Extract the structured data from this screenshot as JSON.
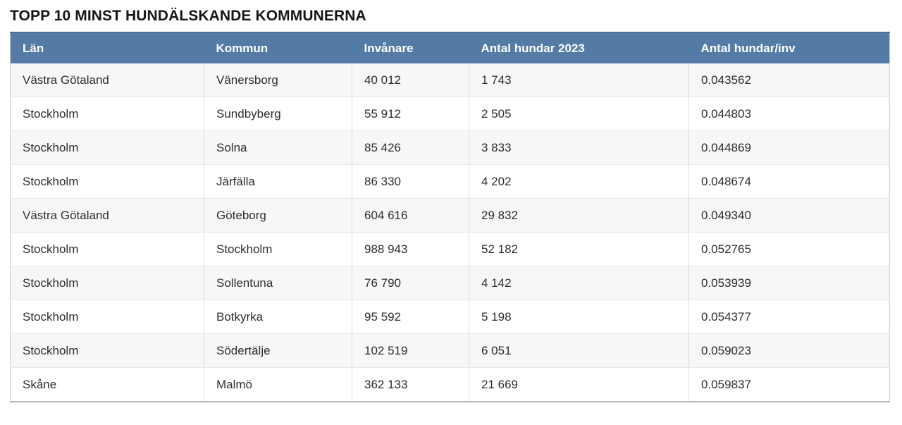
{
  "chart_data": {
    "type": "table",
    "title": "TOPP 10 MINST HUNDÄLSKANDE KOMMUNERNA",
    "columns": [
      "Län",
      "Kommun",
      "Invånare",
      "Antal hundar 2023",
      "Antal hundar/inv"
    ],
    "rows": [
      [
        "Västra Götaland",
        "Vänersborg",
        "40 012",
        "1 743",
        "0.043562"
      ],
      [
        "Stockholm",
        "Sundbyberg",
        "55 912",
        "2 505",
        "0.044803"
      ],
      [
        "Stockholm",
        "Solna",
        "85 426",
        "3 833",
        "0.044869"
      ],
      [
        "Stockholm",
        "Järfälla",
        "86 330",
        "4 202",
        "0.048674"
      ],
      [
        "Västra Götaland",
        "Göteborg",
        "604 616",
        "29 832",
        "0.049340"
      ],
      [
        "Stockholm",
        "Stockholm",
        "988 943",
        "52 182",
        "0.052765"
      ],
      [
        "Stockholm",
        "Sollentuna",
        "76 790",
        "4 142",
        "0.053939"
      ],
      [
        "Stockholm",
        "Botkyrka",
        "95 592",
        "5 198",
        "0.054377"
      ],
      [
        "Stockholm",
        "Södertälje",
        "102 519",
        "6 051",
        "0.059023"
      ],
      [
        "Skåne",
        "Malmö",
        "362 133",
        "21 669",
        "0.059837"
      ]
    ],
    "legend": "none",
    "grid": "row and column separators, alternating row shading"
  },
  "colors": {
    "header_bg": "#547ba5",
    "header_top_border": "#4a6d94",
    "header_text": "#ffffff",
    "row_bg": "#ffffff",
    "row_alt_bg": "#f7f7f7",
    "body_text": "#2e2e2e",
    "title_text": "#161616",
    "cell_border": "#dddddd",
    "table_outer_border": "#cccccc"
  }
}
